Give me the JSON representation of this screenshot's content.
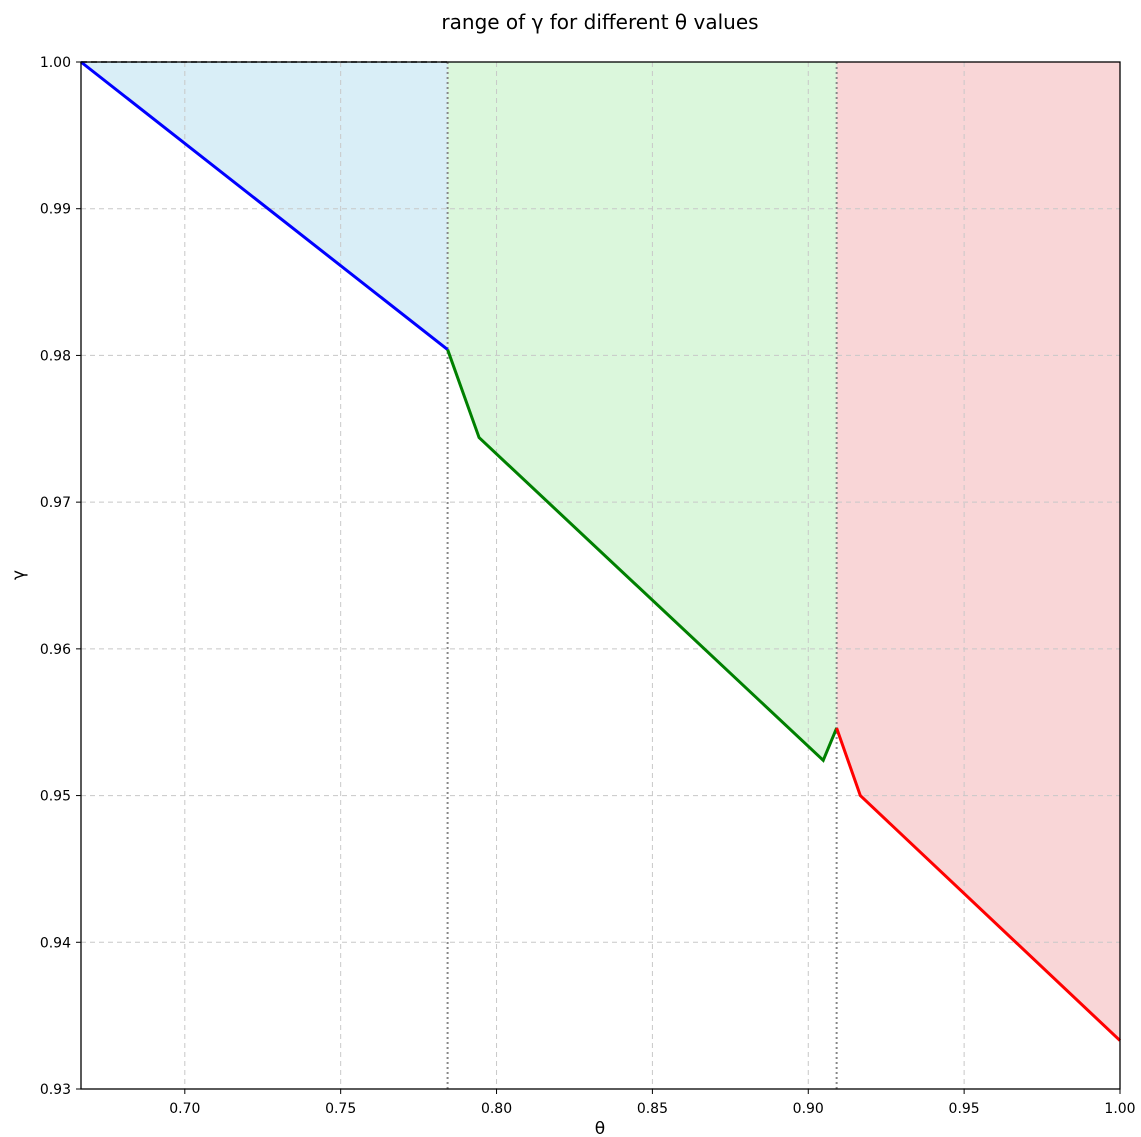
{
  "chart_data": {
    "type": "area",
    "title": "range of γ for different θ values",
    "xlabel": "θ",
    "ylabel": "γ",
    "xlim": [
      0.6667,
      1.0
    ],
    "ylim": [
      0.93,
      1.0
    ],
    "x_tick_labels": [
      "0.70",
      "0.75",
      "0.80",
      "0.85",
      "0.90",
      "0.95",
      "1.00"
    ],
    "x_ticks": [
      0.7,
      0.75,
      0.8,
      0.85,
      0.9,
      0.95,
      1.0
    ],
    "y_tick_labels": [
      "0.93",
      "0.94",
      "0.95",
      "0.96",
      "0.97",
      "0.98",
      "0.99",
      "1.00"
    ],
    "y_ticks": [
      0.93,
      0.94,
      0.95,
      0.96,
      0.97,
      0.98,
      0.99,
      1.0
    ],
    "grid": true,
    "region_boundaries": [
      0.7843,
      0.9091
    ],
    "upper_bound": 1.0,
    "series": [
      {
        "color": "#0000ff",
        "fill": "#d9eef7",
        "x": [
          0.6667,
          0.7843
        ],
        "y": [
          1.0,
          0.9804
        ]
      },
      {
        "color": "#008000",
        "fill": "#dbf7dc",
        "x": [
          0.7843,
          0.7944,
          0.9048,
          0.9091
        ],
        "y": [
          0.9804,
          0.9744,
          0.9524,
          0.9546
        ]
      },
      {
        "color": "#ff0000",
        "fill": "#f9d6d7",
        "x": [
          0.9091,
          0.9167,
          1.0
        ],
        "y": [
          0.9546,
          0.95,
          0.9333
        ]
      }
    ]
  }
}
